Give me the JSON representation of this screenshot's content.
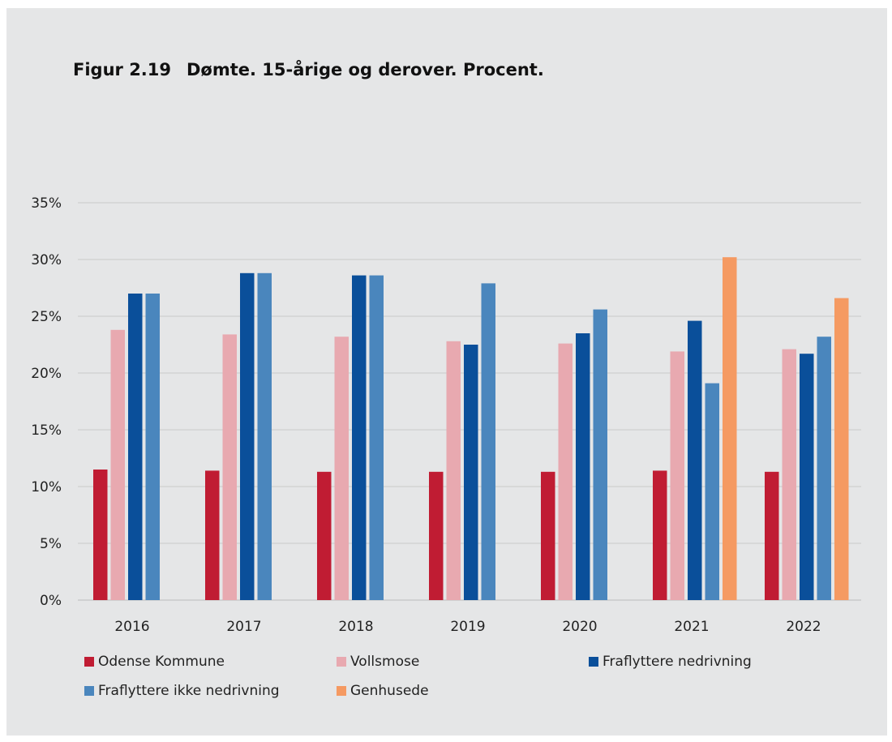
{
  "figure": {
    "number": "Figur 2.19",
    "title": "Dømte. 15-årige og derover. Procent."
  },
  "chart_data": {
    "type": "bar",
    "title": "Figur 2.19 Dømte. 15-årige og derover. Procent.",
    "xlabel": "",
    "ylabel": "",
    "categories": [
      "2016",
      "2017",
      "2018",
      "2019",
      "2020",
      "2021",
      "2022"
    ],
    "ylim": [
      0,
      35
    ],
    "yticks": [
      0,
      5,
      10,
      15,
      20,
      25,
      30,
      35
    ],
    "ytick_labels": [
      "0%",
      "5%",
      "10%",
      "15%",
      "20%",
      "25%",
      "30%",
      "35%"
    ],
    "grid": true,
    "legend_position": "bottom",
    "series": [
      {
        "name": "Odense Kommune",
        "color": "#c01c33",
        "values": [
          11.5,
          11.4,
          11.3,
          11.3,
          11.3,
          11.4,
          11.3
        ]
      },
      {
        "name": "Vollsmose",
        "color": "#e8a9b0",
        "values": [
          23.8,
          23.4,
          23.2,
          22.8,
          22.6,
          21.9,
          22.1
        ]
      },
      {
        "name": "Fraflyttere nedrivning",
        "color": "#0a4f9a",
        "values": [
          27.0,
          28.8,
          28.6,
          22.5,
          23.5,
          24.6,
          21.7
        ]
      },
      {
        "name": "Fraflyttere ikke nedrivning",
        "color": "#4a86bd",
        "values": [
          27.0,
          28.8,
          28.6,
          27.9,
          25.6,
          19.1,
          23.2
        ]
      },
      {
        "name": "Genhusede",
        "color": "#f59a62",
        "values": [
          null,
          null,
          null,
          null,
          null,
          30.2,
          26.6
        ]
      }
    ]
  }
}
